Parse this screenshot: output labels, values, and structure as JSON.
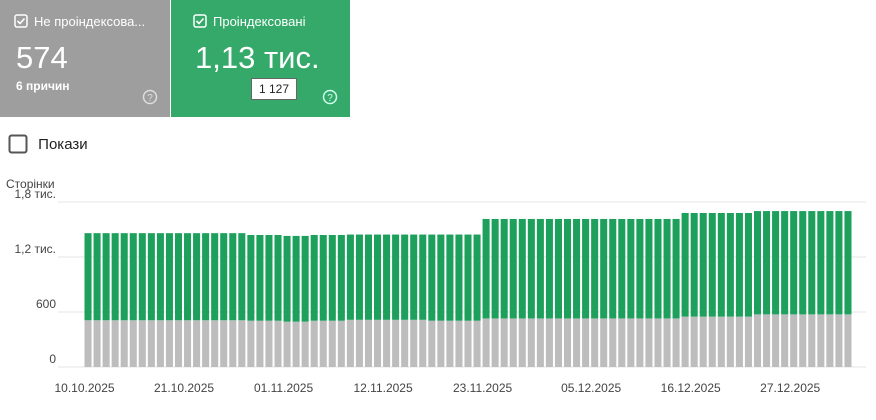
{
  "cards": [
    {
      "value": "574",
      "detail": "6 причин"
    },
    {
      "value": "1,13 тис.",
      "tooltip": "1 127"
    }
  ],
  "toggle": "Покази",
  "chart_data": {
    "type": "stacked-bar",
    "y_label": "Сторінки",
    "categories": [
      "10.10.2025",
      null,
      null,
      null,
      null,
      null,
      null,
      null,
      null,
      null,
      null,
      "21.10.2025",
      null,
      null,
      null,
      null,
      null,
      null,
      null,
      null,
      null,
      null,
      "01.11.2025",
      null,
      null,
      null,
      null,
      null,
      null,
      null,
      null,
      null,
      null,
      "12.11.2025",
      null,
      null,
      null,
      null,
      null,
      null,
      null,
      null,
      null,
      null,
      "23.11.2025",
      null,
      null,
      null,
      null,
      null,
      null,
      null,
      null,
      null,
      null,
      null,
      "05.12.2025",
      null,
      null,
      null,
      null,
      null,
      null,
      null,
      null,
      null,
      null,
      "16.12.2025",
      null,
      null,
      null,
      null,
      null,
      null,
      null,
      null,
      null,
      null,
      "27.12.2025",
      null,
      null,
      null,
      null,
      null,
      null
    ],
    "series": [
      {
        "name": "Не проіндексова...",
        "color": "#bdbdbd",
        "values": [
          510,
          510,
          510,
          510,
          510,
          510,
          510,
          510,
          510,
          510,
          510,
          510,
          510,
          510,
          510,
          510,
          510,
          510,
          505,
          505,
          505,
          505,
          495,
          495,
          495,
          505,
          505,
          505,
          505,
          515,
          515,
          515,
          515,
          515,
          515,
          515,
          515,
          515,
          505,
          505,
          505,
          505,
          505,
          505,
          530,
          530,
          530,
          530,
          530,
          530,
          530,
          530,
          530,
          530,
          530,
          530,
          530,
          530,
          530,
          530,
          530,
          530,
          530,
          530,
          530,
          530,
          550,
          550,
          550,
          550,
          550,
          550,
          550,
          550,
          574,
          574,
          574,
          574,
          574,
          574,
          574,
          574,
          574,
          574,
          574
        ]
      },
      {
        "name": "Проіндексовані",
        "color": "#1ca05c",
        "values": [
          950,
          950,
          950,
          950,
          950,
          950,
          950,
          950,
          950,
          950,
          950,
          950,
          950,
          950,
          950,
          950,
          950,
          950,
          935,
          935,
          935,
          935,
          935,
          935,
          935,
          935,
          935,
          935,
          935,
          930,
          930,
          930,
          930,
          930,
          930,
          930,
          930,
          930,
          940,
          940,
          940,
          940,
          940,
          940,
          1085,
          1085,
          1085,
          1085,
          1085,
          1085,
          1085,
          1085,
          1085,
          1085,
          1085,
          1085,
          1085,
          1085,
          1085,
          1085,
          1085,
          1085,
          1085,
          1085,
          1085,
          1085,
          1130,
          1130,
          1130,
          1130,
          1130,
          1130,
          1130,
          1130,
          1127,
          1127,
          1127,
          1127,
          1127,
          1127,
          1127,
          1127,
          1127,
          1127,
          1127
        ]
      }
    ],
    "ylim": [
      0,
      1800
    ],
    "yticks": [
      0,
      600,
      {
        "value": 1200,
        "label": "1,2 тис."
      },
      {
        "value": 1800,
        "label": "1,8 тис."
      }
    ],
    "grid": true
  }
}
